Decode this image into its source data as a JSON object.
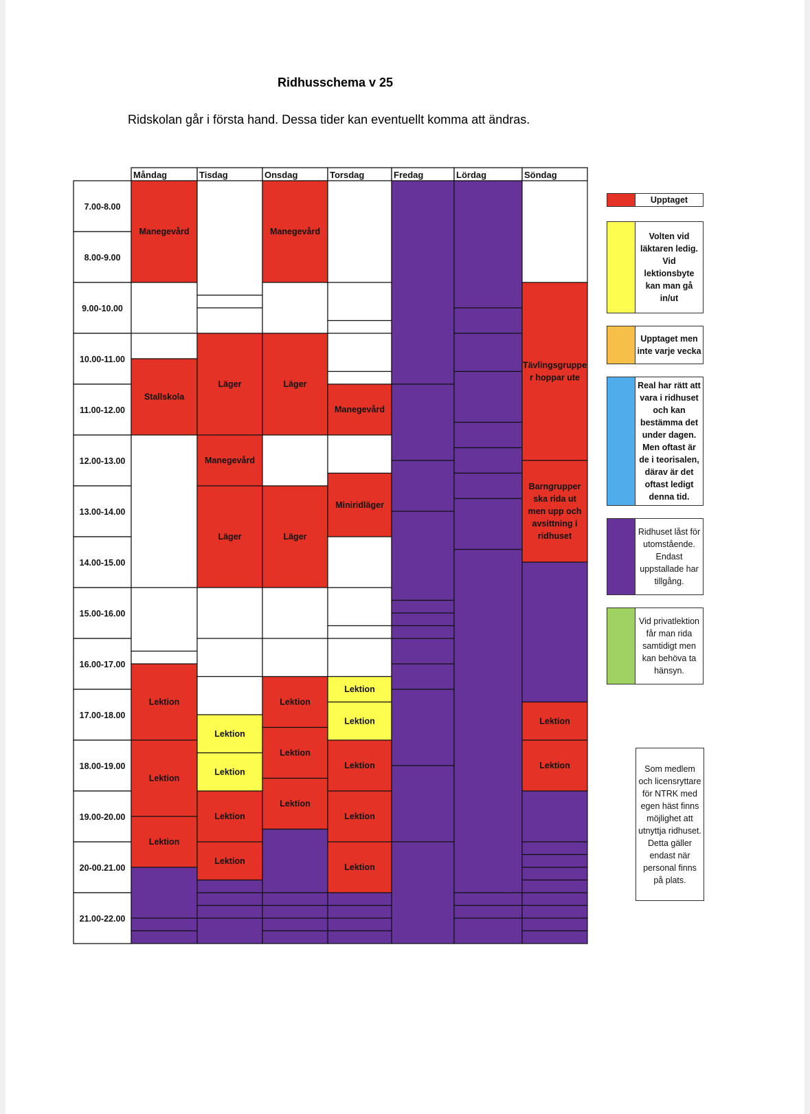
{
  "document": {
    "title": "Ridhusschema v 25",
    "subtitle": "Ridskolan går i första hand. Dessa tider kan eventuellt komma att ändras."
  },
  "colors": {
    "red": "#e43326",
    "purple": "#66339b",
    "yellow": "#fdfd50",
    "orange": "#f6bf47",
    "blue": "#51aceb",
    "green": "#9fd263",
    "white": "#ffffff"
  },
  "days": [
    "Måndag",
    "Tisdag",
    "Onsdag",
    "Torsdag",
    "Fredag",
    "Lördag",
    "Söndag"
  ],
  "time_slots": [
    "7.00-8.00",
    "8.00-9.00",
    "9.00-10.00",
    "10.00-11.00",
    "11.00-12.00",
    "12.00-13.00",
    "13.00-14.00",
    "14.00-15.00",
    "15.00-16.00",
    "16.00-17.00",
    "17.00-18.00",
    "18.00-19.00",
    "19.00-20.00",
    "20-00.21.00",
    "21.00-22.00"
  ],
  "columns": [
    {
      "day": "Måndag",
      "cells": [
        {
          "from": 7,
          "to": 9,
          "color": "red",
          "label": "Manegevård"
        },
        {
          "from": 9,
          "to": 10,
          "color": "white",
          "label": ""
        },
        {
          "from": 10,
          "to": 10.5,
          "color": "white",
          "label": ""
        },
        {
          "from": 10.5,
          "to": 12,
          "color": "red",
          "label": "Stallskola"
        },
        {
          "from": 12,
          "to": 15,
          "color": "white",
          "label": ""
        },
        {
          "from": 15,
          "to": 16.25,
          "color": "white",
          "label": ""
        },
        {
          "from": 16.25,
          "to": 16.5,
          "color": "white",
          "label": ""
        },
        {
          "from": 16.5,
          "to": 18,
          "color": "red",
          "label": "Lektion"
        },
        {
          "from": 18,
          "to": 19.5,
          "color": "red",
          "label": "Lektion"
        },
        {
          "from": 19.5,
          "to": 20.5,
          "color": "red",
          "label": "Lektion"
        },
        {
          "from": 20.5,
          "to": 21.5,
          "color": "purple",
          "label": ""
        },
        {
          "from": 21.5,
          "to": 21.75,
          "color": "purple",
          "label": ""
        },
        {
          "from": 21.75,
          "to": 22,
          "color": "purple",
          "label": ""
        }
      ]
    },
    {
      "day": "Tisdag",
      "cells": [
        {
          "from": 7,
          "to": 9.25,
          "color": "white",
          "label": ""
        },
        {
          "from": 9.25,
          "to": 9.5,
          "color": "white",
          "label": ""
        },
        {
          "from": 9.5,
          "to": 10,
          "color": "white",
          "label": ""
        },
        {
          "from": 10,
          "to": 12,
          "color": "red",
          "label": "Läger"
        },
        {
          "from": 12,
          "to": 13,
          "color": "red",
          "label": "Manegevård"
        },
        {
          "from": 13,
          "to": 15,
          "color": "red",
          "label": "Läger"
        },
        {
          "from": 15,
          "to": 16,
          "color": "white",
          "label": ""
        },
        {
          "from": 16,
          "to": 16.75,
          "color": "white",
          "label": ""
        },
        {
          "from": 16.75,
          "to": 17.5,
          "color": "white",
          "label": ""
        },
        {
          "from": 17.5,
          "to": 18.25,
          "color": "yellow",
          "label": "Lektion"
        },
        {
          "from": 18.25,
          "to": 19,
          "color": "yellow",
          "label": "Lektion"
        },
        {
          "from": 19,
          "to": 20,
          "color": "red",
          "label": "Lektion"
        },
        {
          "from": 20,
          "to": 20.75,
          "color": "red",
          "label": "Lektion"
        },
        {
          "from": 20.75,
          "to": 21,
          "color": "purple",
          "label": ""
        },
        {
          "from": 21,
          "to": 21.25,
          "color": "purple",
          "label": ""
        },
        {
          "from": 21.25,
          "to": 21.5,
          "color": "purple",
          "label": ""
        },
        {
          "from": 21.5,
          "to": 22,
          "color": "purple",
          "label": ""
        }
      ]
    },
    {
      "day": "Onsdag",
      "cells": [
        {
          "from": 7,
          "to": 9,
          "color": "red",
          "label": "Manegevård"
        },
        {
          "from": 9,
          "to": 10,
          "color": "white",
          "label": ""
        },
        {
          "from": 10,
          "to": 12,
          "color": "red",
          "label": "Läger"
        },
        {
          "from": 12,
          "to": 13,
          "color": "white",
          "label": ""
        },
        {
          "from": 13,
          "to": 15,
          "color": "red",
          "label": "Läger"
        },
        {
          "from": 15,
          "to": 16,
          "color": "white",
          "label": ""
        },
        {
          "from": 16,
          "to": 16.75,
          "color": "white",
          "label": ""
        },
        {
          "from": 16.75,
          "to": 17.75,
          "color": "red",
          "label": "Lektion"
        },
        {
          "from": 17.75,
          "to": 18.75,
          "color": "red",
          "label": "Lektion"
        },
        {
          "from": 18.75,
          "to": 19.75,
          "color": "red",
          "label": "Lektion"
        },
        {
          "from": 19.75,
          "to": 21,
          "color": "purple",
          "label": ""
        },
        {
          "from": 21,
          "to": 21.25,
          "color": "purple",
          "label": ""
        },
        {
          "from": 21.25,
          "to": 21.5,
          "color": "purple",
          "label": ""
        },
        {
          "from": 21.5,
          "to": 21.75,
          "color": "purple",
          "label": ""
        },
        {
          "from": 21.75,
          "to": 22,
          "color": "purple",
          "label": ""
        }
      ]
    },
    {
      "day": "Torsdag",
      "cells": [
        {
          "from": 7,
          "to": 9,
          "color": "white",
          "label": ""
        },
        {
          "from": 9,
          "to": 9.75,
          "color": "white",
          "label": ""
        },
        {
          "from": 9.75,
          "to": 10,
          "color": "white",
          "label": ""
        },
        {
          "from": 10,
          "to": 10.75,
          "color": "white",
          "label": ""
        },
        {
          "from": 10.75,
          "to": 11,
          "color": "white",
          "label": ""
        },
        {
          "from": 11,
          "to": 12,
          "color": "red",
          "label": "Manegevård"
        },
        {
          "from": 12,
          "to": 12.75,
          "color": "white",
          "label": ""
        },
        {
          "from": 12.75,
          "to": 14,
          "color": "red",
          "label": "Miniridläger"
        },
        {
          "from": 14,
          "to": 15,
          "color": "white",
          "label": ""
        },
        {
          "from": 15,
          "to": 15.75,
          "color": "white",
          "label": ""
        },
        {
          "from": 15.75,
          "to": 16,
          "color": "white",
          "label": ""
        },
        {
          "from": 16,
          "to": 16.75,
          "color": "white",
          "label": ""
        },
        {
          "from": 16.75,
          "to": 17.25,
          "color": "yellow",
          "label": "Lektion"
        },
        {
          "from": 17.25,
          "to": 18,
          "color": "yellow",
          "label": "Lektion"
        },
        {
          "from": 18,
          "to": 19,
          "color": "red",
          "label": "Lektion"
        },
        {
          "from": 19,
          "to": 20,
          "color": "red",
          "label": "Lektion"
        },
        {
          "from": 20,
          "to": 21,
          "color": "red",
          "label": "Lektion"
        },
        {
          "from": 21,
          "to": 21.25,
          "color": "purple",
          "label": ""
        },
        {
          "from": 21.25,
          "to": 21.5,
          "color": "purple",
          "label": ""
        },
        {
          "from": 21.5,
          "to": 21.75,
          "color": "purple",
          "label": ""
        },
        {
          "from": 21.75,
          "to": 22,
          "color": "purple",
          "label": ""
        }
      ]
    },
    {
      "day": "Fredag",
      "cells": [
        {
          "from": 7,
          "to": 11,
          "color": "purple",
          "label": ""
        },
        {
          "from": 11,
          "to": 12.5,
          "color": "purple",
          "label": ""
        },
        {
          "from": 12.5,
          "to": 13.5,
          "color": "purple",
          "label": ""
        },
        {
          "from": 13.5,
          "to": 15.25,
          "color": "purple",
          "label": ""
        },
        {
          "from": 15.25,
          "to": 15.5,
          "color": "purple",
          "label": ""
        },
        {
          "from": 15.5,
          "to": 15.75,
          "color": "purple",
          "label": ""
        },
        {
          "from": 15.75,
          "to": 16,
          "color": "purple",
          "label": ""
        },
        {
          "from": 16,
          "to": 16.5,
          "color": "purple",
          "label": ""
        },
        {
          "from": 16.5,
          "to": 17,
          "color": "purple",
          "label": ""
        },
        {
          "from": 17,
          "to": 18.5,
          "color": "purple",
          "label": ""
        },
        {
          "from": 18.5,
          "to": 20,
          "color": "purple",
          "label": ""
        },
        {
          "from": 20,
          "to": 22,
          "color": "purple",
          "label": ""
        }
      ]
    },
    {
      "day": "Lördag",
      "cells": [
        {
          "from": 7,
          "to": 9.5,
          "color": "purple",
          "label": ""
        },
        {
          "from": 9.5,
          "to": 10,
          "color": "purple",
          "label": ""
        },
        {
          "from": 10,
          "to": 10.75,
          "color": "purple",
          "label": ""
        },
        {
          "from": 10.75,
          "to": 11.75,
          "color": "purple",
          "label": ""
        },
        {
          "from": 11.75,
          "to": 12.25,
          "color": "purple",
          "label": ""
        },
        {
          "from": 12.25,
          "to": 12.75,
          "color": "purple",
          "label": ""
        },
        {
          "from": 12.75,
          "to": 13.25,
          "color": "purple",
          "label": ""
        },
        {
          "from": 13.25,
          "to": 14.25,
          "color": "purple",
          "label": ""
        },
        {
          "from": 14.25,
          "to": 21,
          "color": "purple",
          "label": ""
        },
        {
          "from": 21,
          "to": 21.25,
          "color": "purple",
          "label": ""
        },
        {
          "from": 21.25,
          "to": 21.5,
          "color": "purple",
          "label": ""
        },
        {
          "from": 21.5,
          "to": 22,
          "color": "purple",
          "label": ""
        }
      ]
    },
    {
      "day": "Söndag",
      "cells": [
        {
          "from": 7,
          "to": 9,
          "color": "white",
          "label": ""
        },
        {
          "from": 9,
          "to": 12.5,
          "color": "red",
          "label": "Tävlingsgruppe r hoppar ute"
        },
        {
          "from": 12.5,
          "to": 14.5,
          "color": "red",
          "label": "Barngrupper ska rida ut men upp och avsittning i ridhuset"
        },
        {
          "from": 14.5,
          "to": 17.25,
          "color": "purple",
          "label": ""
        },
        {
          "from": 17.25,
          "to": 18,
          "color": "red",
          "label": "Lektion"
        },
        {
          "from": 18,
          "to": 19,
          "color": "red",
          "label": "Lektion"
        },
        {
          "from": 19,
          "to": 20,
          "color": "purple",
          "label": ""
        },
        {
          "from": 20,
          "to": 20.25,
          "color": "purple",
          "label": ""
        },
        {
          "from": 20.25,
          "to": 20.5,
          "color": "purple",
          "label": ""
        },
        {
          "from": 20.5,
          "to": 20.75,
          "color": "purple",
          "label": ""
        },
        {
          "from": 20.75,
          "to": 21,
          "color": "purple",
          "label": ""
        },
        {
          "from": 21,
          "to": 21.25,
          "color": "purple",
          "label": ""
        },
        {
          "from": 21.25,
          "to": 21.5,
          "color": "purple",
          "label": ""
        },
        {
          "from": 21.5,
          "to": 21.75,
          "color": "purple",
          "label": ""
        },
        {
          "from": 21.75,
          "to": 22,
          "color": "purple",
          "label": ""
        }
      ]
    }
  ],
  "legend": [
    {
      "color": "red",
      "text": "Upptaget"
    },
    {
      "color": "yellow",
      "text": "Volten vid läktaren ledig. Vid lektionsbyte kan man gå in/ut"
    },
    {
      "color": "orange",
      "text": "Upptaget men inte varje vecka"
    },
    {
      "color": "blue",
      "text": "Real har rätt att vara i ridhuset och kan bestämma det under dagen. Men oftast är de i teorisalen, därav är det oftast ledigt denna tid."
    },
    {
      "color": "purple",
      "text": "Ridhuset låst för utomstående. Endast uppstallade har tillgång."
    },
    {
      "color": "green",
      "text": "Vid privatlektion får man rida samtidigt men kan behöva ta hänsyn."
    }
  ],
  "member_note": "Som medlem och licensryttare för NTRK med egen häst finns möjlighet att utnyttja ridhuset. Detta gäller endast när personal finns på plats."
}
